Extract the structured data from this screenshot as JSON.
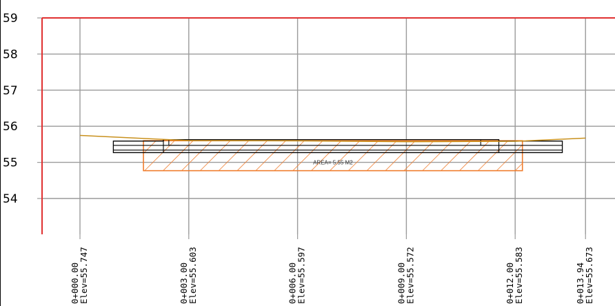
{
  "chart_data": {
    "type": "cross-section",
    "ylim": [
      53,
      59
    ],
    "y_ticks": [
      "54",
      "55",
      "56",
      "57",
      "58",
      "59"
    ],
    "x_ticks": [
      {
        "station": 0.0,
        "label": "0+000.00",
        "elev": "Elev=55.747"
      },
      {
        "station": 3.0,
        "label": "0+003.00",
        "elev": "Elev=55.603"
      },
      {
        "station": 6.0,
        "label": "0+006.00",
        "elev": "Elev=55.597"
      },
      {
        "station": 9.0,
        "label": "0+009.00",
        "elev": "Elev=55.572"
      },
      {
        "station": 12.0,
        "label": "0+012.00",
        "elev": "Elev=55.583"
      },
      {
        "station": 13.94,
        "label": "0+013.94",
        "elev": "Elev=55.673"
      }
    ],
    "ground_profile": [
      [
        0.0,
        55.747
      ],
      [
        3.0,
        55.603
      ],
      [
        6.0,
        55.597
      ],
      [
        9.0,
        55.572
      ],
      [
        12.0,
        55.583
      ],
      [
        13.94,
        55.673
      ]
    ],
    "pavement_structure": [
      [
        0.92,
        55.59
      ],
      [
        2.3,
        55.59
      ],
      [
        2.3,
        55.63
      ],
      [
        11.55,
        55.63
      ],
      [
        11.55,
        55.59
      ],
      [
        13.3,
        55.59
      ],
      [
        13.3,
        55.27
      ],
      [
        0.92,
        55.27
      ]
    ],
    "pavement_lines": [
      [
        [
          0.92,
          55.47
        ],
        [
          13.3,
          55.47
        ]
      ],
      [
        [
          0.92,
          55.34
        ],
        [
          13.3,
          55.34
        ]
      ],
      [
        [
          2.3,
          55.63
        ],
        [
          2.3,
          55.27
        ]
      ],
      [
        [
          11.55,
          55.63
        ],
        [
          11.55,
          55.27
        ]
      ]
    ],
    "cut_fill_region": {
      "x": [
        1.75,
        12.2
      ],
      "y": [
        54.77,
        55.6
      ],
      "label": "AREA= 5.55 M2"
    },
    "colors": {
      "grid": "#9a9a9a",
      "axis": "#e03030",
      "ground": "#c8901c",
      "hatch": "#f07c2c",
      "structure": "#000000"
    }
  }
}
